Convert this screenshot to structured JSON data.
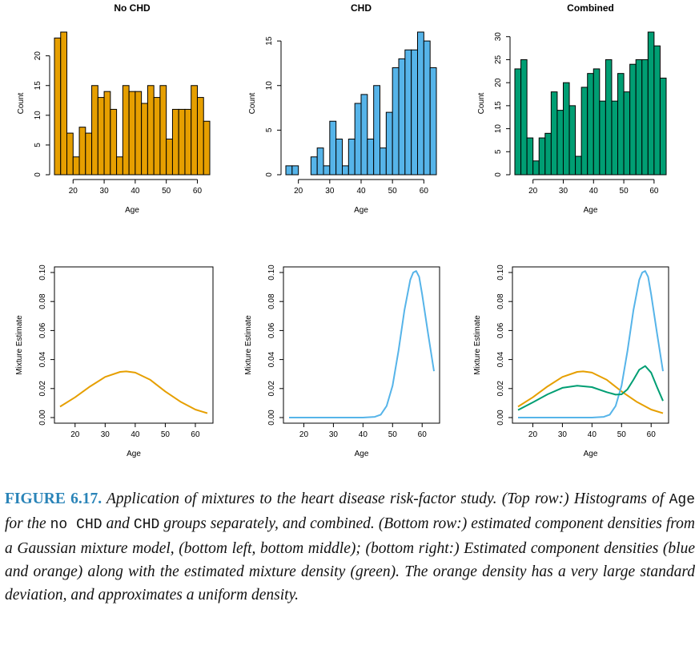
{
  "chart_data": [
    {
      "type": "bar",
      "panel": "hist-nochd",
      "title": "No CHD",
      "xlabel": "Age",
      "ylabel": "Count",
      "color": "#E69F00",
      "bin_start": 14,
      "bin_width": 2,
      "values": [
        23,
        24,
        7,
        3,
        8,
        7,
        15,
        13,
        14,
        11,
        3,
        15,
        14,
        14,
        12,
        15,
        13,
        15,
        6,
        11,
        11,
        11,
        15,
        13,
        9
      ],
      "xlim": [
        14,
        64
      ],
      "ylim": [
        0,
        24
      ],
      "xticks": [
        20,
        30,
        40,
        50,
        60
      ],
      "yticks": [
        0,
        5,
        10,
        15,
        20
      ]
    },
    {
      "type": "bar",
      "panel": "hist-chd",
      "title": "CHD",
      "xlabel": "Age",
      "ylabel": "Count",
      "color": "#56B4E9",
      "bin_start": 16,
      "bin_width": 2,
      "values": [
        1,
        1,
        0,
        0,
        2,
        3,
        1,
        6,
        4,
        1,
        4,
        8,
        9,
        4,
        10,
        3,
        7,
        12,
        13,
        14,
        14,
        16,
        15,
        12
      ],
      "xlim": [
        16,
        64
      ],
      "ylim": [
        0,
        16
      ],
      "xticks": [
        20,
        30,
        40,
        50,
        60
      ],
      "yticks": [
        0,
        5,
        10,
        15
      ]
    },
    {
      "type": "bar",
      "panel": "hist-combined",
      "title": "Combined",
      "xlabel": "Age",
      "ylabel": "Count",
      "color": "#009E73",
      "bin_start": 14,
      "bin_width": 2,
      "values": [
        23,
        25,
        8,
        3,
        8,
        9,
        18,
        14,
        20,
        15,
        4,
        19,
        22,
        23,
        16,
        25,
        16,
        22,
        18,
        24,
        25,
        25,
        31,
        28,
        21
      ],
      "xlim": [
        14,
        64
      ],
      "ylim": [
        0,
        31
      ],
      "xticks": [
        20,
        30,
        40,
        50,
        60
      ],
      "yticks": [
        0,
        5,
        10,
        15,
        20,
        25,
        30
      ]
    },
    {
      "type": "line",
      "panel": "density-nochd",
      "title": "",
      "xlabel": "Age",
      "ylabel": "Mixture Estimate",
      "xlim": [
        15,
        64
      ],
      "ylim": [
        0,
        0.1
      ],
      "xticks": [
        20,
        30,
        40,
        50,
        60
      ],
      "yticks": [
        "0.00",
        "0.02",
        "0.04",
        "0.06",
        "0.08",
        "0.10"
      ],
      "series": [
        {
          "color": "#E69F00",
          "x": [
            15,
            20,
            25,
            30,
            35,
            37,
            40,
            45,
            50,
            55,
            60,
            64
          ],
          "y": [
            0.0075,
            0.014,
            0.0215,
            0.028,
            0.0315,
            0.0318,
            0.031,
            0.026,
            0.018,
            0.011,
            0.0055,
            0.003
          ]
        }
      ]
    },
    {
      "type": "line",
      "panel": "density-chd",
      "title": "",
      "xlabel": "Age",
      "ylabel": "Mixture Estimate",
      "xlim": [
        15,
        64
      ],
      "ylim": [
        0,
        0.1
      ],
      "xticks": [
        20,
        30,
        40,
        50,
        60
      ],
      "yticks": [
        "0.00",
        "0.02",
        "0.04",
        "0.06",
        "0.08",
        "0.10"
      ],
      "series": [
        {
          "color": "#56B4E9",
          "x": [
            15,
            30,
            40,
            44,
            46,
            48,
            50,
            52,
            54,
            56,
            57,
            58,
            59,
            60,
            62,
            64
          ],
          "y": [
            0,
            0,
            0,
            0.0005,
            0.002,
            0.008,
            0.022,
            0.046,
            0.074,
            0.095,
            0.1,
            0.101,
            0.097,
            0.085,
            0.058,
            0.032
          ]
        }
      ]
    },
    {
      "type": "line",
      "panel": "density-combined",
      "title": "",
      "xlabel": "Age",
      "ylabel": "Mixture Estimate",
      "xlim": [
        15,
        64
      ],
      "ylim": [
        0,
        0.1
      ],
      "xticks": [
        20,
        30,
        40,
        50,
        60
      ],
      "yticks": [
        "0.00",
        "0.02",
        "0.04",
        "0.06",
        "0.08",
        "0.10"
      ],
      "series": [
        {
          "color": "#E69F00",
          "x": [
            15,
            20,
            25,
            30,
            35,
            37,
            40,
            45,
            50,
            55,
            60,
            64
          ],
          "y": [
            0.0075,
            0.014,
            0.0215,
            0.028,
            0.0315,
            0.0318,
            0.031,
            0.026,
            0.018,
            0.011,
            0.0055,
            0.003
          ]
        },
        {
          "color": "#56B4E9",
          "x": [
            15,
            30,
            40,
            44,
            46,
            48,
            50,
            52,
            54,
            56,
            57,
            58,
            59,
            60,
            62,
            64
          ],
          "y": [
            0,
            0,
            0,
            0.0005,
            0.002,
            0.008,
            0.022,
            0.046,
            0.074,
            0.095,
            0.1,
            0.101,
            0.097,
            0.085,
            0.058,
            0.032
          ]
        },
        {
          "color": "#009E73",
          "x": [
            15,
            20,
            25,
            30,
            35,
            40,
            45,
            48,
            50,
            52,
            54,
            56,
            58,
            60,
            62,
            64
          ],
          "y": [
            0.0052,
            0.0105,
            0.016,
            0.0205,
            0.022,
            0.021,
            0.0175,
            0.0158,
            0.016,
            0.0195,
            0.026,
            0.033,
            0.0355,
            0.031,
            0.021,
            0.0115
          ]
        }
      ]
    }
  ],
  "caption": {
    "label": "FIGURE 6.17.",
    "t1": " Application of mixtures to the heart disease risk-factor study. (Top row:) Histograms of ",
    "c1": "Age",
    "t2": " for the ",
    "c2": "no CHD",
    "t3": " and ",
    "c3": "CHD",
    "t4": " groups separately, and combined. (Bottom row:) estimated component densities from a Gaussian mixture model, (bottom left, bottom middle); (bottom right:) Estimated component densities (blue and orange) along with the estimated mixture density (green). The orange density has a very large standard deviation, and approximates a uniform density."
  }
}
